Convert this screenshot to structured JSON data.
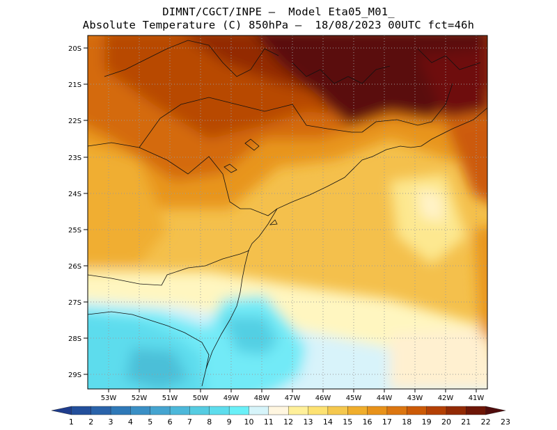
{
  "header": {
    "line1": "DIMNT/CGCT/INPE –  Model Eta05_M01_",
    "line2": "Absolute Temperature (C) 850hPa –  18/08/2023 00UTC fct=46h"
  },
  "map": {
    "lat_labels": [
      "20S",
      "21S",
      "22S",
      "23S",
      "24S",
      "25S",
      "26S",
      "27S",
      "28S",
      "29S"
    ],
    "lon_labels": [
      "53W",
      "52W",
      "51W",
      "50W",
      "49W",
      "48W",
      "47W",
      "46W",
      "45W",
      "44W",
      "43W",
      "42W",
      "41W"
    ]
  },
  "colorbar": {
    "labels": [
      "1",
      "2",
      "3",
      "4",
      "5",
      "6",
      "7",
      "8",
      "9",
      "10",
      "11",
      "12",
      "13",
      "14",
      "15",
      "16",
      "17",
      "18",
      "19",
      "20",
      "21",
      "22",
      "23"
    ],
    "colors": [
      "#1e3c8c",
      "#234f9b",
      "#2a63aa",
      "#2f79b8",
      "#3a8fc5",
      "#45a4d0",
      "#4db8da",
      "#56cce2",
      "#5edded",
      "#6af0f8",
      "#d6f4fa",
      "#fff6e0",
      "#fff09a",
      "#fde272",
      "#f5c84e",
      "#f0ae2c",
      "#e8921a",
      "#dc7610",
      "#cc5a06",
      "#b44004",
      "#922a04",
      "#6e1606",
      "#500c0c"
    ]
  }
}
